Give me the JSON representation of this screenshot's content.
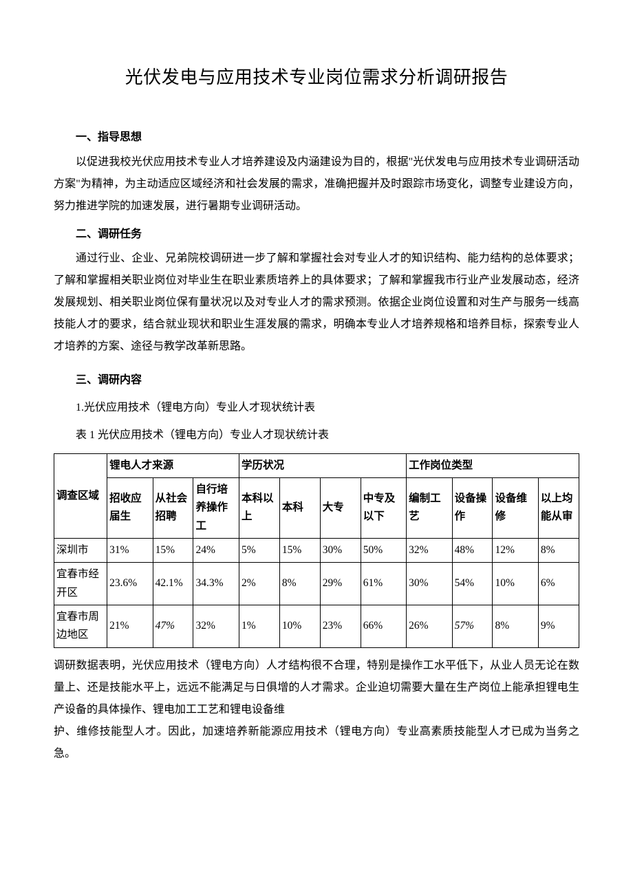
{
  "title": "光伏发电与应用技术专业岗位需求分析调研报告",
  "section1": {
    "heading": "一、指导思想",
    "para": "以促进我校光伏应用技术专业人才培养建设及内涵建设为目的，根据\"光伏发电与应用技术专业调研活动方案\"为精神，为主动适应区域经济和社会发展的需求，准确把握并及时跟踪市场变化，调整专业建设方向，努力推进学院的加速发展，进行暑期专业调研活动。"
  },
  "section2": {
    "heading": "二、调研任务",
    "para": "通过行业、企业、兄弟院校调研进一步了解和掌握社会对专业人才的知识结构、能力结构的总体要求；了解和掌握相关职业岗位对毕业生在职业素质培养上的具体要求；了解和掌握我市行业产业发展动态，经济发展规划、相关职业岗位保有量状况以及对专业人才的需求预测。依据企业岗位设置和对生产与服务一线高技能人才的要求，结合就业现状和职业生涯发展的需求，明确本专业人才培养规格和培养目标，探索专业人才培养的方案、途径与教学改革新思路。"
  },
  "section3": {
    "heading": "三、调研内容",
    "item1": "1.光伏应用技术（锂电方向）专业人才现状统计表",
    "tableCaption": "表 1 光伏应用技术（锂电方向）专业人才现状统计表"
  },
  "table": {
    "headerGroups": {
      "col0": "调查区域",
      "g1": "锂电人才来源",
      "g2": "学历状况",
      "g3": "工作岗位类型"
    },
    "subHeaders": {
      "h1": "招收应届生",
      "h2": "从社会招聘",
      "h3": "自行培养操作工",
      "h4": "本科以上",
      "h5": "本科",
      "h6": "大专",
      "h7": "中专及以下",
      "h8": "编制工艺",
      "h9": "设备操作",
      "h10": "设备维修",
      "h11": "以上均能从审"
    },
    "rows": [
      {
        "region": "深圳市",
        "c1": "31%",
        "c2": "15%",
        "c3": "24%",
        "c4": "5%",
        "c5": "15%",
        "c6": "30%",
        "c7": "50%",
        "c8": "32%",
        "c9": "48%",
        "c10": "12%",
        "c11": "8%"
      },
      {
        "region": "宜春市经开区",
        "c1": "23.6%",
        "c2": "42.1%",
        "c3": "34.3%",
        "c4": "2%",
        "c5": "8%",
        "c6": "29%",
        "c7": "61%",
        "c8": "30%",
        "c9": "54%",
        "c10": "10%",
        "c11": "6%"
      },
      {
        "region": "宜春市周边地区",
        "c1": "21%",
        "c2": "47%",
        "c3": "32%",
        "c4": "1%",
        "c5": "10%",
        "c6": "23%",
        "c7": "66%",
        "c8": "26%",
        "c9": "57%",
        "c10": "8%",
        "c11": "9%"
      }
    ]
  },
  "afterTable": {
    "p1": "调研数据表明，光伏应用技术（锂电方向）人才结构很不合理，特别是操作工水平低下，从业人员无论在数量上、还是技能水平上，远远不能满足与日俱增的人才需求。企业迫切需要大量在生产岗位上能承担锂电生产设备的具体操作、锂电加工工艺和锂电设备维",
    "p2": "护、维修技能型人才。因此，加速培养新能源应用技术（锂电方向）专业高素质技能型人才已成为当务之急。"
  },
  "style": {
    "italicCells": [
      "r2c2",
      "r2c9"
    ]
  }
}
